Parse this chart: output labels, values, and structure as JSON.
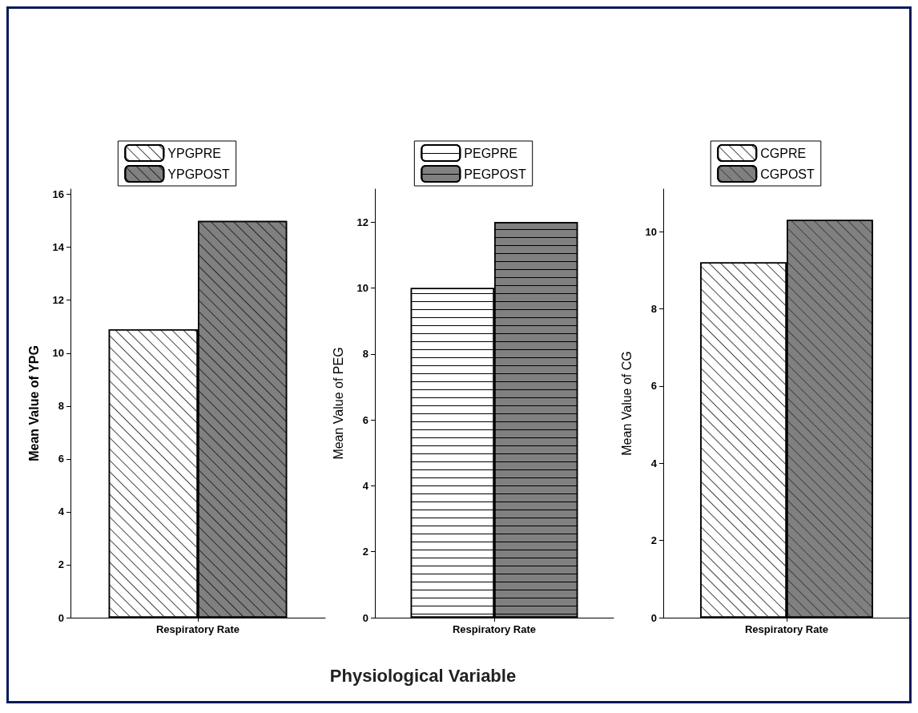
{
  "chart_data": [
    {
      "type": "bar",
      "ylabel": "Mean Value of YPG",
      "categories": [
        "Respiratory Rate"
      ],
      "series": [
        {
          "name": "YPGPRE",
          "color": "#ffffff",
          "values": [
            10.9
          ]
        },
        {
          "name": "YPGPOST",
          "color": "#808080",
          "values": [
            15.0
          ]
        }
      ],
      "ylim": [
        0,
        16.2
      ],
      "yticks": [
        0,
        2,
        4,
        6,
        8,
        10,
        12,
        14,
        16
      ],
      "grid": false,
      "legend": "top"
    },
    {
      "type": "bar",
      "ylabel": "Mean Value of PEG",
      "xlabel": "Physiological Variable",
      "categories": [
        "Respiratory Rate"
      ],
      "series": [
        {
          "name": "PEGPRE",
          "color": "#ffffff",
          "values": [
            10.0
          ]
        },
        {
          "name": "PEGPOST",
          "color": "#808080",
          "values": [
            12.0
          ]
        }
      ],
      "ylim": [
        0,
        13
      ],
      "yticks": [
        0,
        2,
        4,
        6,
        8,
        10,
        12
      ],
      "grid": false,
      "legend": "top"
    },
    {
      "type": "bar",
      "ylabel": "Mean Value of CG",
      "categories": [
        "Respiratory Rate"
      ],
      "series": [
        {
          "name": "CGPRE",
          "color": "#ffffff",
          "values": [
            9.2
          ]
        },
        {
          "name": "CGPOST",
          "color": "#808080",
          "values": [
            10.3
          ]
        }
      ],
      "ylim": [
        0,
        11.1
      ],
      "yticks": [
        0,
        2,
        4,
        6,
        8,
        10
      ],
      "grid": false,
      "legend": "top"
    }
  ]
}
